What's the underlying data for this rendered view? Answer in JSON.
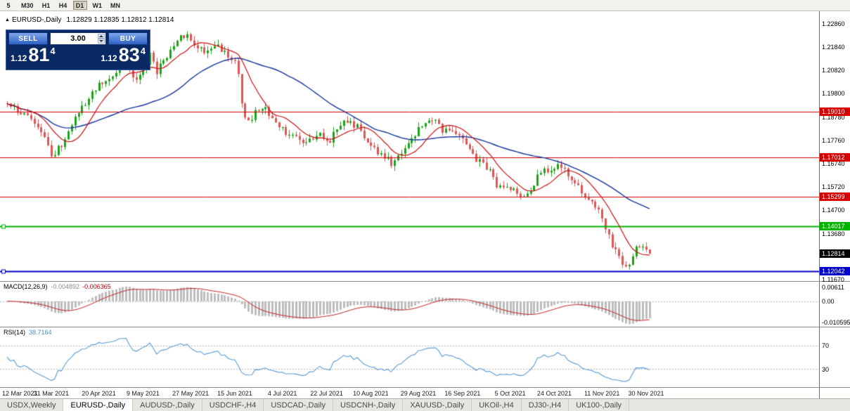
{
  "toolbar": {
    "timeframes": [
      {
        "label": "5",
        "active": false
      },
      {
        "label": "M30",
        "active": false
      },
      {
        "label": "H1",
        "active": false
      },
      {
        "label": "H4",
        "active": false
      },
      {
        "label": "D1",
        "active": true
      },
      {
        "label": "W1",
        "active": false
      },
      {
        "label": "MN",
        "active": false
      }
    ]
  },
  "chart_header": {
    "marker": "▲",
    "symbol_title": "EURUSD-,Daily",
    "ohlc": "1.12829 1.12835 1.12812 1.12814"
  },
  "trade_panel": {
    "sell_label": "SELL",
    "buy_label": "BUY",
    "volume": "3.00",
    "bid": {
      "prefix": "1.12",
      "big": "81",
      "sup": "4"
    },
    "ask": {
      "prefix": "1.12",
      "big": "83",
      "sup": "4"
    },
    "panel_color": "#0a2a66"
  },
  "chart_data": {
    "type": "candlestick",
    "symbol": "EURUSD-",
    "timeframe": "Daily",
    "title": "EURUSD-,Daily",
    "ohlc": {
      "open": "1.12829",
      "high": "1.12835",
      "low": "1.12812",
      "close": "1.12814"
    },
    "price_range": [
      1.1161,
      1.2341
    ],
    "y_ticks": [
      1.2286,
      1.2184,
      1.2082,
      1.198,
      1.1878,
      1.1776,
      1.1674,
      1.1572,
      1.147,
      1.1368,
      1.1167
    ],
    "x_ticks": [
      "12 Mar 2021",
      "31 Mar 2021",
      "20 Apr 2021",
      "9 May 2021",
      "27 May 2021",
      "15 Jun 2021",
      "4 Jul 2021",
      "22 Jul 2021",
      "10 Aug 2021",
      "29 Aug 2021",
      "16 Sep 2021",
      "5 Oct 2021",
      "24 Oct 2021",
      "11 Nov 2021",
      "30 Nov 2021"
    ],
    "hlines": [
      {
        "value": 1.1901,
        "color": "#d60000",
        "width": 1,
        "handles": false
      },
      {
        "value": 1.17012,
        "color": "#d60000",
        "width": 1,
        "handles": false
      },
      {
        "value": 1.15299,
        "color": "#d60000",
        "width": 1,
        "handles": false
      },
      {
        "value": 1.14017,
        "color": "#00b400",
        "width": 2,
        "handles": true
      },
      {
        "value": 1.12042,
        "color": "#0000c8",
        "width": 2,
        "handles": true
      }
    ],
    "current_price_tag": {
      "value": 1.12814,
      "color": "#000000"
    },
    "bar_count": 190,
    "candle_span": 0.793,
    "last_close": 1.12814,
    "close_anchors": [
      [
        0.0,
        1.1935
      ],
      [
        0.02,
        1.19
      ],
      [
        0.045,
        1.186
      ],
      [
        0.07,
        1.1712
      ],
      [
        0.085,
        1.176
      ],
      [
        0.11,
        1.1905
      ],
      [
        0.13,
        1.1975
      ],
      [
        0.15,
        1.204
      ],
      [
        0.17,
        1.2085
      ],
      [
        0.183,
        1.212
      ],
      [
        0.2,
        1.202
      ],
      [
        0.222,
        1.2145
      ],
      [
        0.233,
        1.208
      ],
      [
        0.255,
        1.2175
      ],
      [
        0.278,
        1.2245
      ],
      [
        0.29,
        1.2195
      ],
      [
        0.31,
        1.2165
      ],
      [
        0.33,
        1.2195
      ],
      [
        0.345,
        1.212
      ],
      [
        0.357,
        1.2125
      ],
      [
        0.366,
        1.19
      ],
      [
        0.38,
        1.1865
      ],
      [
        0.395,
        1.1935
      ],
      [
        0.415,
        1.1855
      ],
      [
        0.44,
        1.179
      ],
      [
        0.465,
        1.1775
      ],
      [
        0.487,
        1.18
      ],
      [
        0.5,
        1.177
      ],
      [
        0.527,
        1.1868
      ],
      [
        0.545,
        1.1838
      ],
      [
        0.572,
        1.1735
      ],
      [
        0.6,
        1.1672
      ],
      [
        0.617,
        1.1745
      ],
      [
        0.632,
        1.1795
      ],
      [
        0.658,
        1.1878
      ],
      [
        0.678,
        1.1818
      ],
      [
        0.7,
        1.1808
      ],
      [
        0.73,
        1.169
      ],
      [
        0.752,
        1.165
      ],
      [
        0.76,
        1.158
      ],
      [
        0.783,
        1.1555
      ],
      [
        0.806,
        1.1535
      ],
      [
        0.832,
        1.164
      ],
      [
        0.862,
        1.1668
      ],
      [
        0.88,
        1.158
      ],
      [
        0.896,
        1.1555
      ],
      [
        0.915,
        1.1475
      ],
      [
        0.925,
        1.1445
      ],
      [
        0.942,
        1.132
      ],
      [
        0.95,
        1.1285
      ],
      [
        0.965,
        1.12
      ],
      [
        0.975,
        1.1285
      ],
      [
        0.983,
        1.133
      ],
      [
        0.991,
        1.129
      ],
      [
        1.0,
        1.12814
      ]
    ],
    "ma_fast_period": 10,
    "ma_slow_period": 40,
    "colors": {
      "up": "#1ca11c",
      "down": "#dd5555",
      "ma_fast": "#cc1111",
      "ma_slow": "#16339c",
      "macd_hist": "#bdbdbd",
      "macd_signal": "#c42222",
      "rsi_line": "#5b9bd5",
      "hline_red": "#d60000",
      "hline_green": "#00b400",
      "hline_blue": "#0000c8"
    },
    "macd": {
      "label": "MACD(12,26,9)",
      "value_main": "-0.004892",
      "value_signal": "-0.006365",
      "axis_labels": [
        "0.00611",
        "0.00",
        "-0.010595"
      ],
      "axis_values": [
        0.00611,
        0,
        -0.010595
      ],
      "range": [
        0.0086,
        -0.0112
      ]
    },
    "rsi": {
      "label": "RSI(14)",
      "value": "38.7164",
      "levels": [
        70,
        30
      ],
      "range": [
        0,
        100
      ]
    }
  },
  "tabs": [
    {
      "label": "USDX,Weekly",
      "active": false
    },
    {
      "label": "EURUSD-,Daily",
      "active": true
    },
    {
      "label": "AUDUSD-,Daily",
      "active": false
    },
    {
      "label": "USDCHF-,H4",
      "active": false
    },
    {
      "label": "USDCAD-,Daily",
      "active": false
    },
    {
      "label": "USDCNH-,Daily",
      "active": false
    },
    {
      "label": "XAUUSD-,Daily",
      "active": false
    },
    {
      "label": "UKOil-,H4",
      "active": false
    },
    {
      "label": "DJ30-,H4",
      "active": false
    },
    {
      "label": "UK100-,Daily",
      "active": false
    }
  ]
}
